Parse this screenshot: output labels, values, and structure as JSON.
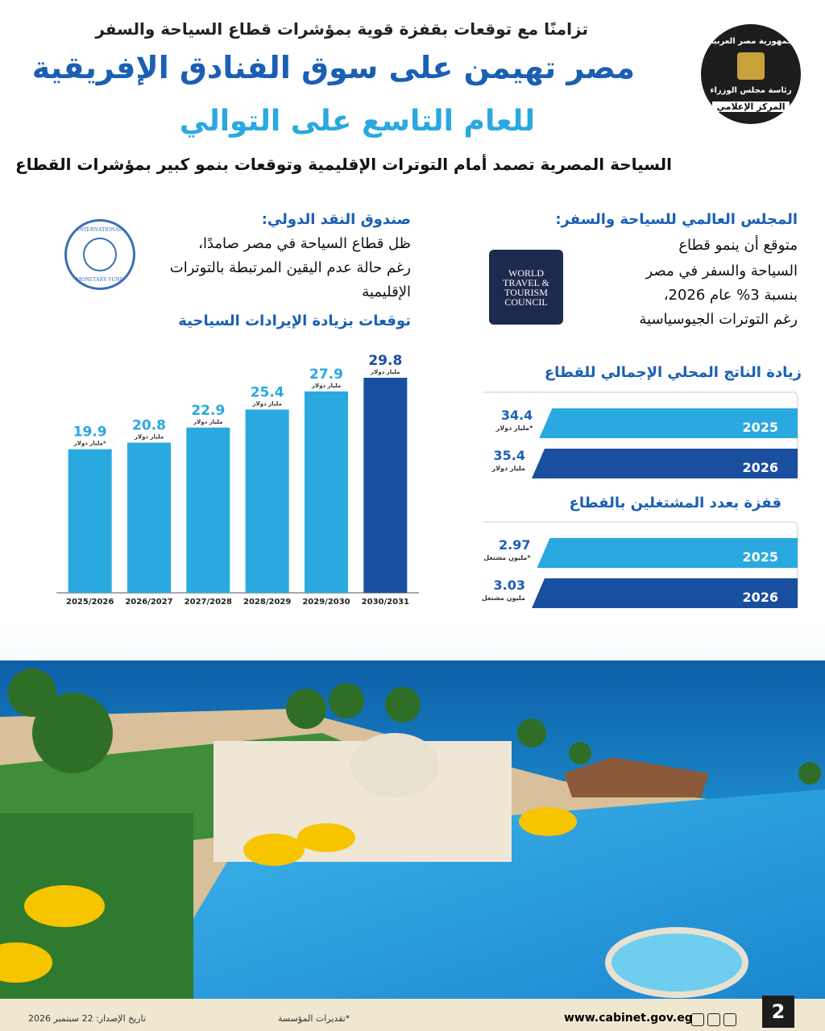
{
  "header": {
    "kicker": "تزامنًا مع توقعات بقفزة قوية بمؤشرات قطاع السياحة والسفر",
    "title_line1": "مصر تهيمن على سوق الفنادق الإفريقية",
    "title_line2": "للعام التاسع على التوالي",
    "subtitle": "السياحة المصرية تصمد أمام التوترات الإقليمية وتوقعات بنمو كبير بمؤشرات القطاع",
    "logo_lines": [
      "جمهورية مصر العربية",
      "رئاسة مجلس الوزراء",
      "المركز الإعلامي"
    ]
  },
  "imf": {
    "heading": "صندوق النقد الدولي:",
    "lines": [
      "ظل قطاع السياحة في مصر صامدًا،",
      "رغم حالة عدم اليقين المرتبطة بالتوترات",
      "الإقليمية"
    ],
    "logo_lines": [
      "INTERNATIONAL",
      "MONETARY FUND"
    ]
  },
  "wttc": {
    "heading": "المجلس العالمي للسياحة والسفر:",
    "lines": [
      "متوقع أن ينمو قطاع",
      "السياحة والسفر في مصر",
      "بنسبة 3% عام 2026،",
      "رغم التوترات الجيوسياسية"
    ],
    "logo_lines": [
      "WORLD",
      "TRAVEL &",
      "TOURISM",
      "COUNCIL"
    ]
  },
  "chart_data": [
    {
      "type": "bar",
      "orientation": "vertical",
      "title": "توقعات بزيادة الإيرادات السياحية",
      "categories": [
        "2025/2026",
        "2026/2027",
        "2027/2028",
        "2028/2029",
        "2029/2030",
        "2030/2031"
      ],
      "values": [
        19.9,
        20.8,
        22.9,
        25.4,
        27.9,
        29.8
      ],
      "unit_labels": [
        "مليار دولار*",
        "مليار دولار",
        "مليار دولار",
        "مليار دولار",
        "مليار دولار",
        "مليار دولار"
      ],
      "colors": [
        "#29a9e0",
        "#29a9e0",
        "#29a9e0",
        "#29a9e0",
        "#29a9e0",
        "#1a4fa0"
      ]
    },
    {
      "type": "bar",
      "orientation": "horizontal",
      "title": "زيادة الناتج المحلي الإجمالي للقطاع",
      "categories": [
        "2025",
        "2026"
      ],
      "values": [
        34.4,
        35.4
      ],
      "unit_labels": [
        "مليار دولار*",
        "مليار دولار"
      ],
      "colors": [
        "#29a9e0",
        "#1a4fa0"
      ]
    },
    {
      "type": "bar",
      "orientation": "horizontal",
      "title": "قفزة بعدد المشتغلين بالقطاع",
      "categories": [
        "2025",
        "2026"
      ],
      "values": [
        2.97,
        3.03
      ],
      "unit_labels": [
        "مليون مشتغل*",
        "مليون مشتغل"
      ],
      "colors": [
        "#29a9e0",
        "#1a4fa0"
      ]
    }
  ],
  "footer": {
    "url": "www.cabinet.gov.eg",
    "note": "*تقديرات المؤسسة",
    "date": "تاريخ الإصدار: 22 سبتمبر 2026",
    "page": "2"
  }
}
